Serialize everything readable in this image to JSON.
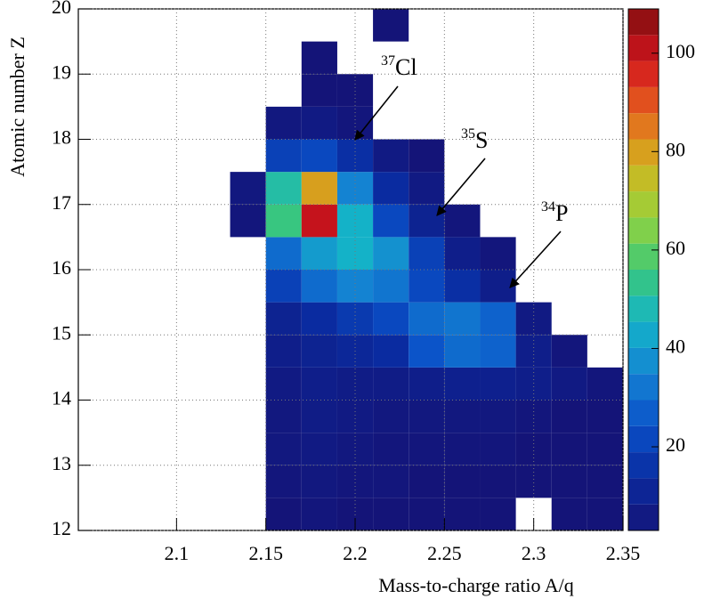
{
  "chart_data": {
    "type": "heatmap",
    "x_label": "Mass-to-charge ratio A/q",
    "y_label": "Atomic number Z",
    "xlim": [
      2.045,
      2.35
    ],
    "xticks": [
      2.1,
      2.15,
      2.2,
      2.25,
      2.3,
      2.35
    ],
    "ylim": [
      12,
      20
    ],
    "yticks": [
      12,
      13,
      14,
      15,
      16,
      17,
      18,
      19,
      20
    ],
    "zlim": [
      3,
      109
    ],
    "zticks": [
      20,
      40,
      60,
      80,
      100
    ],
    "grid": true,
    "colormap": [
      "#141478",
      "#0a2a9e",
      "#0a50c8",
      "#1482d2",
      "#14b4c8",
      "#3cc878",
      "#96d23c",
      "#d2b41e",
      "#e6641e",
      "#d2141e",
      "#7f0f0f"
    ],
    "xbins": [
      2.05,
      2.07,
      2.09,
      2.11,
      2.13,
      2.15,
      2.17,
      2.19,
      2.21,
      2.23,
      2.25,
      2.27,
      2.29,
      2.31,
      2.33,
      2.35
    ],
    "ybins": [
      12,
      12.5,
      13,
      13.5,
      14,
      14.5,
      15,
      15.5,
      16,
      16.5,
      17,
      17.5,
      18,
      18.5,
      19,
      19.5,
      20
    ],
    "values": [
      [
        null,
        null,
        null,
        null,
        null,
        3,
        4,
        3,
        3,
        3,
        3,
        3,
        null,
        3,
        3
      ],
      [
        null,
        null,
        null,
        null,
        null,
        4,
        5,
        4,
        4,
        3,
        3,
        3,
        3,
        3,
        3
      ],
      [
        null,
        null,
        null,
        null,
        null,
        5,
        6,
        5,
        4,
        4,
        4,
        4,
        3,
        3,
        3
      ],
      [
        null,
        null,
        null,
        null,
        null,
        5,
        7,
        6,
        5,
        5,
        5,
        5,
        4,
        3,
        3
      ],
      [
        null,
        null,
        null,
        null,
        null,
        6,
        8,
        7,
        7,
        8,
        9,
        9,
        8,
        6,
        4
      ],
      [
        null,
        null,
        null,
        null,
        null,
        8,
        10,
        12,
        14,
        25,
        30,
        28,
        8,
        4,
        null
      ],
      [
        null,
        null,
        null,
        null,
        null,
        10,
        14,
        18,
        22,
        30,
        32,
        28,
        6,
        null,
        null
      ],
      [
        null,
        null,
        null,
        null,
        null,
        20,
        30,
        35,
        32,
        22,
        15,
        8,
        null,
        null,
        null
      ],
      [
        null,
        null,
        null,
        null,
        null,
        30,
        40,
        45,
        38,
        20,
        8,
        4,
        null,
        null,
        null
      ],
      [
        null,
        null,
        null,
        null,
        4,
        55,
        100,
        45,
        22,
        10,
        4,
        null,
        null,
        null,
        null
      ],
      [
        null,
        null,
        null,
        null,
        5,
        50,
        80,
        35,
        14,
        6,
        null,
        null,
        null,
        null,
        null
      ],
      [
        null,
        null,
        null,
        null,
        null,
        20,
        22,
        15,
        6,
        3,
        null,
        null,
        null,
        null,
        null
      ],
      [
        null,
        null,
        null,
        null,
        null,
        5,
        6,
        4,
        null,
        null,
        null,
        null,
        null,
        null,
        null
      ],
      [
        null,
        null,
        null,
        null,
        null,
        null,
        3,
        3,
        null,
        null,
        null,
        null,
        null,
        null,
        null
      ],
      [
        null,
        null,
        null,
        null,
        null,
        null,
        3,
        null,
        null,
        null,
        null,
        null,
        null,
        null,
        null
      ],
      [
        null,
        null,
        null,
        null,
        null,
        null,
        null,
        null,
        3,
        null,
        null,
        null,
        null,
        null,
        null
      ]
    ],
    "annotations": [
      {
        "mass": "37",
        "label": "Cl"
      },
      {
        "mass": "35",
        "label": "S"
      },
      {
        "mass": "34",
        "label": "P"
      }
    ]
  }
}
